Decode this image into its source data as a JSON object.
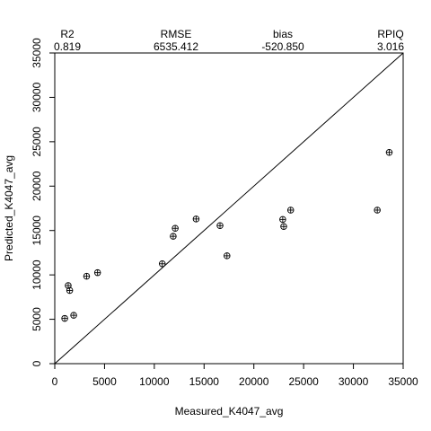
{
  "chart_data": {
    "type": "scatter",
    "xlabel": "Measured_K4047_avg",
    "ylabel": "Predicted_K4047_avg",
    "xlim": [
      0,
      35000
    ],
    "ylim": [
      0,
      35000
    ],
    "xticks": [
      0,
      5000,
      10000,
      15000,
      20000,
      25000,
      30000,
      35000
    ],
    "yticks": [
      0,
      5000,
      10000,
      15000,
      20000,
      25000,
      30000,
      35000
    ],
    "grid": false,
    "reference_line": "1:1",
    "marker": "circle-plus",
    "stats": [
      {
        "name": "R2",
        "value": "0.819"
      },
      {
        "name": "RMSE",
        "value": "6535.412"
      },
      {
        "name": "bias",
        "value": "-520.850"
      },
      {
        "name": "RPIQ",
        "value": "3.016"
      }
    ],
    "points": [
      {
        "x": 1000,
        "y": 5100
      },
      {
        "x": 1900,
        "y": 5450
      },
      {
        "x": 1350,
        "y": 8800
      },
      {
        "x": 1500,
        "y": 8250
      },
      {
        "x": 3200,
        "y": 9850
      },
      {
        "x": 4300,
        "y": 10250
      },
      {
        "x": 10800,
        "y": 11250
      },
      {
        "x": 11900,
        "y": 14350
      },
      {
        "x": 12100,
        "y": 15250
      },
      {
        "x": 14200,
        "y": 16300
      },
      {
        "x": 16600,
        "y": 15550
      },
      {
        "x": 17300,
        "y": 12150
      },
      {
        "x": 22900,
        "y": 16250
      },
      {
        "x": 23000,
        "y": 15450
      },
      {
        "x": 23700,
        "y": 17300
      },
      {
        "x": 32400,
        "y": 17300
      },
      {
        "x": 33600,
        "y": 23800
      }
    ]
  }
}
